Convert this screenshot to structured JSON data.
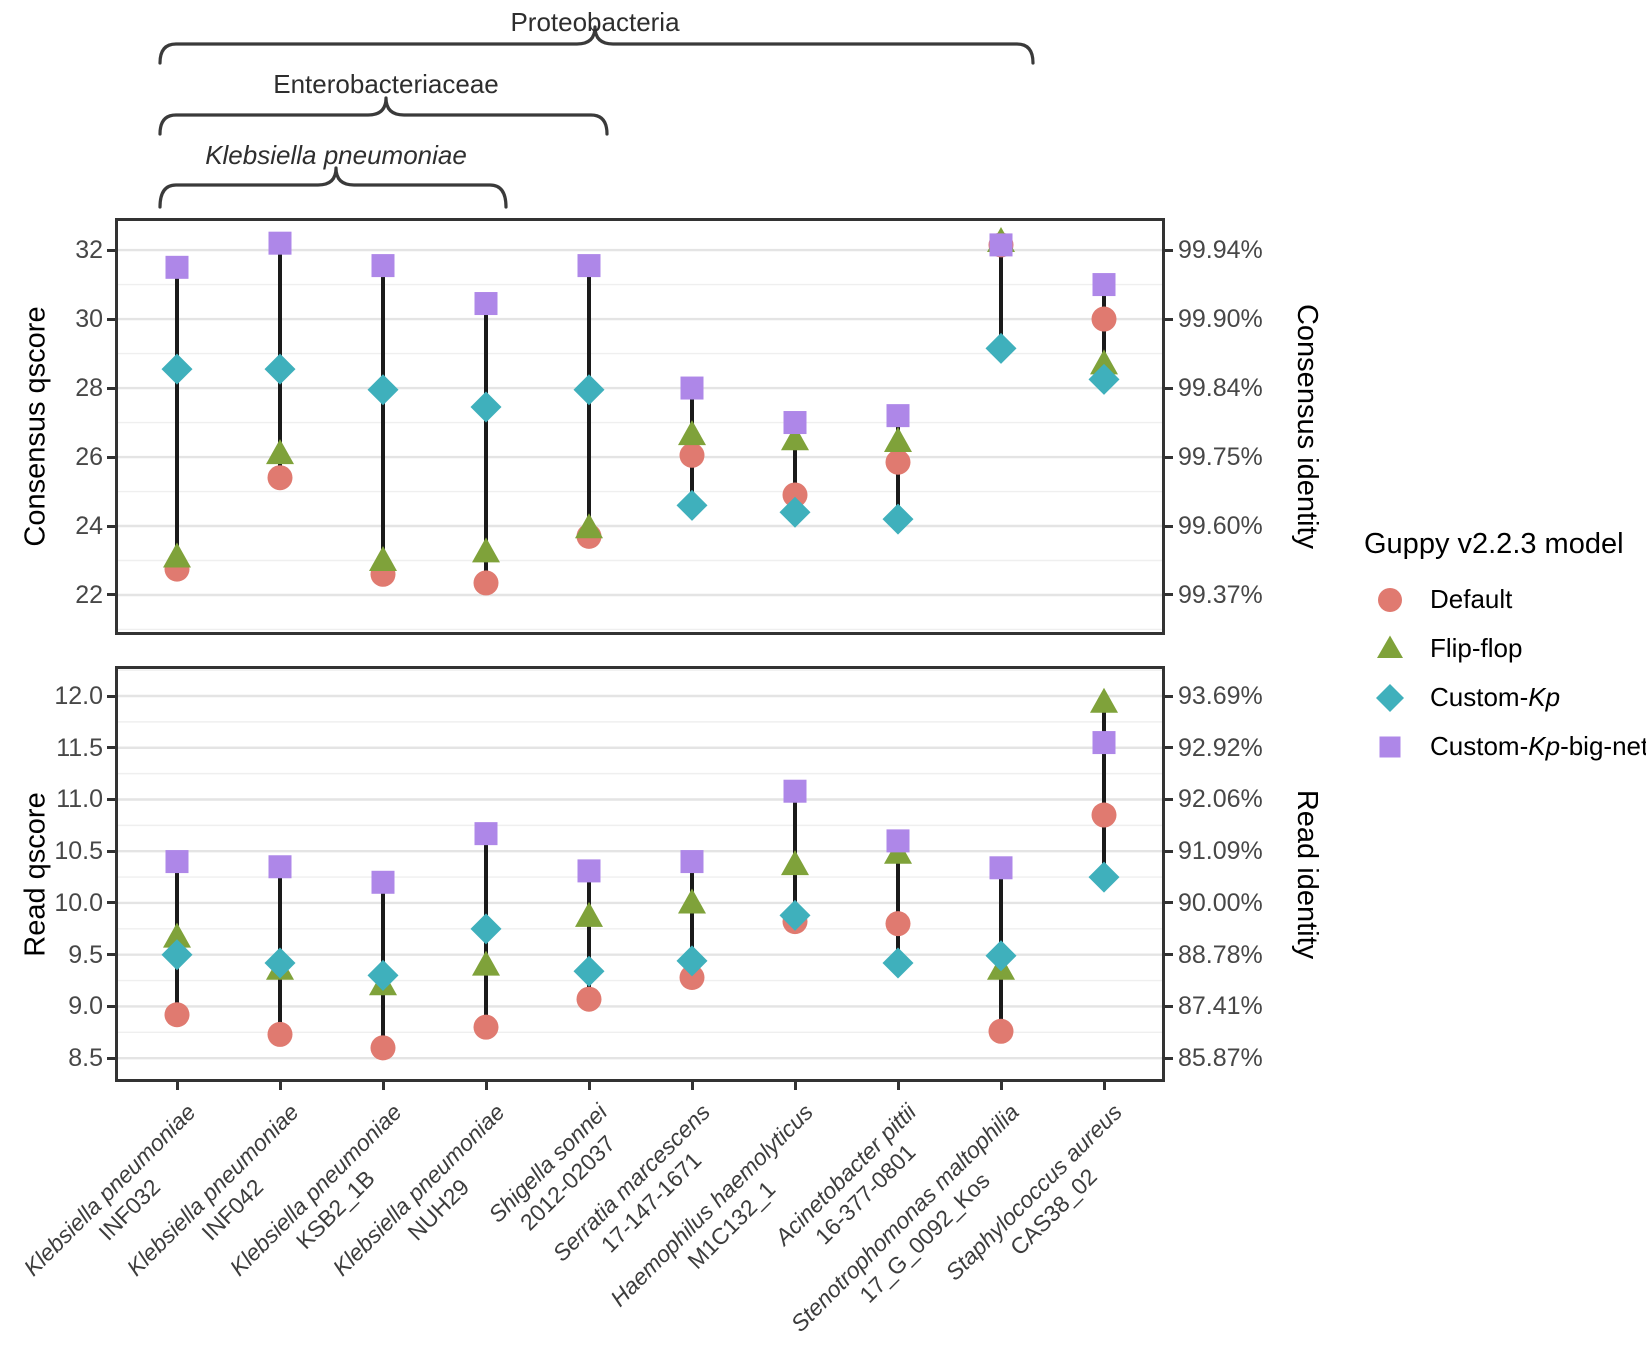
{
  "chart_data": {
    "type": "scatter",
    "layout_hint": "two vertically stacked dot-range (dumbbell) panels, shared categorical x axis, secondary percent axes on the right, taxonomy braces above, legend on the right",
    "taxonomy_braces": [
      {
        "label": "Proteobacteria",
        "italic": false,
        "isolate_span": [
          1,
          9
        ]
      },
      {
        "label": "Enterobacteriaceae",
        "italic": false,
        "isolate_span": [
          1,
          5
        ]
      },
      {
        "label": "Klebsiella pneumoniae",
        "italic": true,
        "isolate_span": [
          1,
          4
        ]
      }
    ],
    "isolates": [
      {
        "species": "Klebsiella pneumoniae",
        "strain": "INF032"
      },
      {
        "species": "Klebsiella pneumoniae",
        "strain": "INF042"
      },
      {
        "species": "Klebsiella pneumoniae",
        "strain": "KSB2_1B"
      },
      {
        "species": "Klebsiella pneumoniae",
        "strain": "NUH29"
      },
      {
        "species": "Shigella sonnei",
        "strain": "2012-02037"
      },
      {
        "species": "Serratia marcescens",
        "strain": "17-147-1671"
      },
      {
        "species": "Haemophilus haemolyticus",
        "strain": "M1C132_1"
      },
      {
        "species": "Acinetobacter pittii",
        "strain": "16-377-0801"
      },
      {
        "species": "Stenotrophomonas maltophilia",
        "strain": "17_G_0092_Kos"
      },
      {
        "species": "Staphylococcus aureus",
        "strain": "CAS38_02"
      }
    ],
    "legend": {
      "title": "Guppy v2.2.3 model",
      "position": "right",
      "items": [
        {
          "label": "Default",
          "marker": "circle",
          "color": "#e07a70",
          "label_parts": [
            {
              "text": "Default",
              "italic": false
            }
          ]
        },
        {
          "label": "Flip-flop",
          "marker": "triangle",
          "color": "#7fa23a",
          "label_parts": [
            {
              "text": "Flip-flop",
              "italic": false
            }
          ]
        },
        {
          "label": "Custom-Kp",
          "marker": "diamond",
          "color": "#3fb0bc",
          "label_parts": [
            {
              "text": "Custom-",
              "italic": false
            },
            {
              "text": "Kp",
              "italic": true
            }
          ]
        },
        {
          "label": "Custom-Kp-big-net",
          "marker": "square",
          "color": "#ae87e8",
          "label_parts": [
            {
              "text": "Custom-",
              "italic": false
            },
            {
              "text": "Kp",
              "italic": true
            },
            {
              "text": "-big-net",
              "italic": false
            }
          ]
        }
      ]
    },
    "panels": [
      {
        "id": "consensus",
        "left_axis_title": "Consensus qscore",
        "right_axis_title": "Consensus identity",
        "ylim": [
          20.84,
          32.93
        ],
        "minor_step": 1,
        "grid": true,
        "ticks": [
          {
            "value": 22,
            "left": "22",
            "right": "99.37%"
          },
          {
            "value": 24,
            "left": "24",
            "right": "99.60%"
          },
          {
            "value": 26,
            "left": "26",
            "right": "99.75%"
          },
          {
            "value": 28,
            "left": "28",
            "right": "99.84%"
          },
          {
            "value": 30,
            "left": "30",
            "right": "99.90%"
          },
          {
            "value": 32,
            "left": "32",
            "right": "99.94%"
          }
        ],
        "series": [
          {
            "name": "Default",
            "values": [
              22.75,
              25.4,
              22.6,
              22.35,
              23.7,
              26.05,
              24.9,
              25.85,
              32.15,
              30.0
            ]
          },
          {
            "name": "Flip-flop",
            "values": [
              23.1,
              26.1,
              23.0,
              23.25,
              23.95,
              26.65,
              26.5,
              26.45,
              32.25,
              28.7
            ]
          },
          {
            "name": "Custom-Kp",
            "values": [
              28.55,
              28.55,
              27.95,
              27.45,
              27.95,
              24.6,
              24.4,
              24.2,
              29.15,
              28.25
            ]
          },
          {
            "name": "Custom-Kp-big-net",
            "values": [
              31.5,
              32.2,
              31.55,
              30.45,
              31.55,
              28.0,
              27.0,
              27.2,
              32.15,
              31.0
            ]
          }
        ]
      },
      {
        "id": "read",
        "left_axis_title": "Read qscore",
        "right_axis_title": "Read identity",
        "ylim": [
          8.27,
          12.29
        ],
        "minor_step": 0.25,
        "grid": true,
        "ticks": [
          {
            "value": 8.5,
            "left": "8.5",
            "right": "85.87%"
          },
          {
            "value": 9.0,
            "left": "9.0",
            "right": "87.41%"
          },
          {
            "value": 9.5,
            "left": "9.5",
            "right": "88.78%"
          },
          {
            "value": 10.0,
            "left": "10.0",
            "right": "90.00%"
          },
          {
            "value": 10.5,
            "left": "10.5",
            "right": "91.09%"
          },
          {
            "value": 11.0,
            "left": "11.0",
            "right": "92.06%"
          },
          {
            "value": 11.5,
            "left": "11.5",
            "right": "92.92%"
          },
          {
            "value": 12.0,
            "left": "12.0",
            "right": "93.69%"
          }
        ],
        "series": [
          {
            "name": "Default",
            "values": [
              8.92,
              8.73,
              8.6,
              8.8,
              9.07,
              9.28,
              9.82,
              9.8,
              8.76,
              10.85
            ]
          },
          {
            "name": "Flip-flop",
            "values": [
              9.67,
              9.36,
              9.21,
              9.4,
              9.87,
              10.0,
              10.37,
              10.48,
              9.36,
              11.94
            ]
          },
          {
            "name": "Custom-Kp",
            "values": [
              9.5,
              9.42,
              9.3,
              9.75,
              9.34,
              9.44,
              9.88,
              9.42,
              9.49,
              10.25
            ]
          },
          {
            "name": "Custom-Kp-big-net",
            "values": [
              10.4,
              10.35,
              10.2,
              10.67,
              10.31,
              10.4,
              11.08,
              10.6,
              10.34,
              11.55
            ]
          }
        ]
      }
    ],
    "style": {
      "range_line_color": "#1a1a1a",
      "panel_border_color": "#333333",
      "major_grid_color": "#e4e4e4",
      "minor_grid_color": "#efefef",
      "tick_text_color": "#474747",
      "brace_color": "#3a3a3a"
    }
  }
}
